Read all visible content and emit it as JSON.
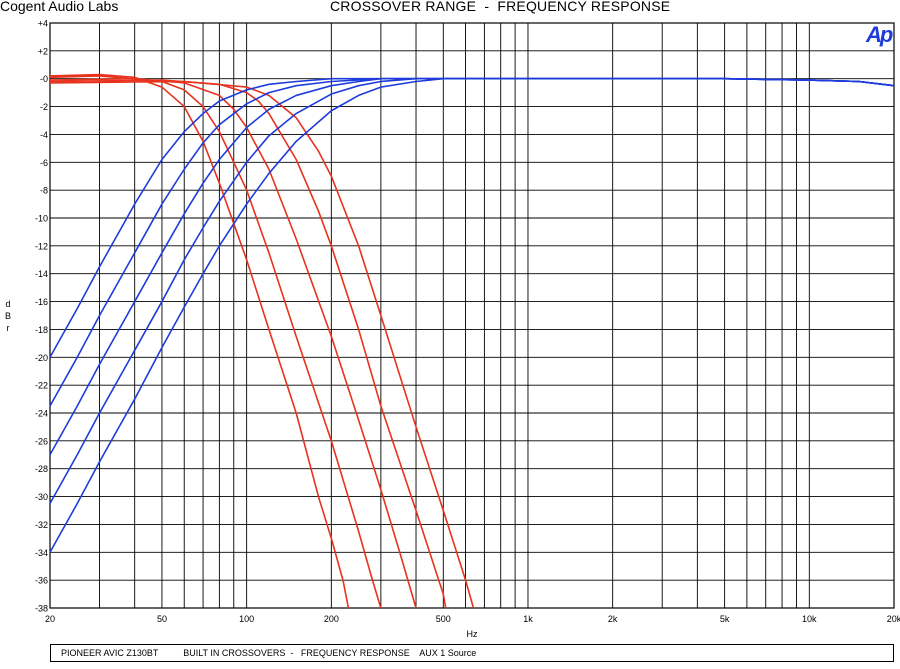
{
  "header": {
    "lab_name": "Cogent Audio Labs",
    "title": "CROSSOVER RANGE  -  FREQUENCY RESPONSE",
    "logo": "Ap"
  },
  "footer": {
    "device": "PIONEER AVIC Z130BT",
    "description": "BUILT IN CROSSOVERS  -   FREQUENCY RESPONSE    AUX 1 Source"
  },
  "chart_data": {
    "type": "line",
    "title": "CROSSOVER RANGE  -  FREQUENCY RESPONSE",
    "xlabel": "Hz",
    "ylabel": "dBr",
    "ylabel_chars": [
      "d",
      "B",
      "r"
    ],
    "x_scale": "log",
    "xlim": [
      20,
      20000
    ],
    "ylim": [
      -38,
      4
    ],
    "grid": true,
    "x_ticks": [
      20,
      50,
      100,
      200,
      500,
      1000,
      2000,
      5000,
      10000,
      20000
    ],
    "x_tick_labels": [
      "20",
      "50",
      "100",
      "200",
      "500",
      "1k",
      "2k",
      "5k",
      "10k",
      "20k"
    ],
    "y_ticks": [
      4,
      2,
      0,
      -2,
      -4,
      -6,
      -8,
      -10,
      -12,
      -14,
      -16,
      -18,
      -20,
      -22,
      -24,
      -26,
      -28,
      -30,
      -32,
      -34,
      -36,
      -38
    ],
    "y_tick_labels": [
      "+4",
      "+2",
      "-0",
      "-2",
      "-4",
      "-6",
      "-8",
      "-10",
      "-12",
      "-14",
      "-16",
      "-18",
      "-20",
      "-22",
      "-24",
      "-26",
      "-28",
      "-30",
      "-32",
      "-34",
      "-36",
      "-38"
    ],
    "colors": {
      "low_pass": "#e8321e",
      "high_pass": "#1e3cdc"
    },
    "series": [
      {
        "kind": "low_pass",
        "color": "#e8321e",
        "points": [
          [
            20,
            0.2
          ],
          [
            30,
            0.3
          ],
          [
            40,
            0.1
          ],
          [
            50,
            -0.6
          ],
          [
            60,
            -2.0
          ],
          [
            70,
            -4.5
          ],
          [
            80,
            -7.5
          ],
          [
            100,
            -13.0
          ],
          [
            120,
            -18.0
          ],
          [
            150,
            -24.0
          ],
          [
            180,
            -30.0
          ],
          [
            200,
            -33.0
          ],
          [
            220,
            -36.0
          ],
          [
            230,
            -38.0
          ]
        ]
      },
      {
        "kind": "low_pass",
        "color": "#e8321e",
        "points": [
          [
            20,
            0.1
          ],
          [
            30,
            0.2
          ],
          [
            50,
            -0.2
          ],
          [
            60,
            -0.8
          ],
          [
            70,
            -2.0
          ],
          [
            80,
            -3.8
          ],
          [
            90,
            -6.0
          ],
          [
            100,
            -8.0
          ],
          [
            120,
            -12.5
          ],
          [
            150,
            -18.5
          ],
          [
            200,
            -26.0
          ],
          [
            250,
            -32.5
          ],
          [
            280,
            -36.0
          ],
          [
            300,
            -38.0
          ]
        ]
      },
      {
        "kind": "low_pass",
        "color": "#e8321e",
        "points": [
          [
            20,
            -0.1
          ],
          [
            40,
            0.0
          ],
          [
            60,
            -0.3
          ],
          [
            80,
            -1.2
          ],
          [
            90,
            -2.2
          ],
          [
            100,
            -3.5
          ],
          [
            120,
            -6.5
          ],
          [
            150,
            -11.5
          ],
          [
            200,
            -18.5
          ],
          [
            250,
            -24.5
          ],
          [
            300,
            -29.5
          ],
          [
            350,
            -34.0
          ],
          [
            400,
            -38.0
          ]
        ]
      },
      {
        "kind": "low_pass",
        "color": "#e8321e",
        "points": [
          [
            20,
            -0.2
          ],
          [
            50,
            -0.1
          ],
          [
            80,
            -0.4
          ],
          [
            100,
            -1.0
          ],
          [
            110,
            -1.6
          ],
          [
            120,
            -2.5
          ],
          [
            150,
            -5.8
          ],
          [
            180,
            -9.5
          ],
          [
            200,
            -12.0
          ],
          [
            250,
            -18.0
          ],
          [
            300,
            -23.5
          ],
          [
            400,
            -31.0
          ],
          [
            500,
            -37.0
          ],
          [
            510,
            -38.0
          ]
        ]
      },
      {
        "kind": "low_pass",
        "color": "#e8321e",
        "points": [
          [
            20,
            -0.3
          ],
          [
            60,
            -0.2
          ],
          [
            100,
            -0.6
          ],
          [
            120,
            -1.2
          ],
          [
            150,
            -2.8
          ],
          [
            180,
            -5.2
          ],
          [
            200,
            -7.0
          ],
          [
            250,
            -12.0
          ],
          [
            300,
            -17.0
          ],
          [
            400,
            -25.0
          ],
          [
            500,
            -31.0
          ],
          [
            600,
            -36.0
          ],
          [
            640,
            -38.0
          ]
        ]
      },
      {
        "kind": "high_pass",
        "color": "#1e3cdc",
        "points": [
          [
            20,
            -20.0
          ],
          [
            25,
            -16.5
          ],
          [
            30,
            -13.5
          ],
          [
            40,
            -9.0
          ],
          [
            50,
            -5.8
          ],
          [
            60,
            -3.8
          ],
          [
            70,
            -2.5
          ],
          [
            80,
            -1.6
          ],
          [
            100,
            -0.8
          ],
          [
            120,
            -0.4
          ],
          [
            150,
            -0.2
          ],
          [
            200,
            0.0
          ],
          [
            300,
            0.0
          ],
          [
            1000,
            0.0
          ],
          [
            5000,
            0.0
          ],
          [
            10000,
            -0.1
          ],
          [
            15000,
            -0.2
          ],
          [
            20000,
            -0.5
          ]
        ]
      },
      {
        "kind": "high_pass",
        "color": "#1e3cdc",
        "points": [
          [
            20,
            -23.5
          ],
          [
            25,
            -20.0
          ],
          [
            30,
            -17.0
          ],
          [
            40,
            -12.5
          ],
          [
            50,
            -9.0
          ],
          [
            60,
            -6.5
          ],
          [
            70,
            -4.6
          ],
          [
            80,
            -3.3
          ],
          [
            100,
            -1.8
          ],
          [
            120,
            -1.0
          ],
          [
            150,
            -0.5
          ],
          [
            200,
            -0.2
          ],
          [
            300,
            0.0
          ],
          [
            1000,
            0.0
          ],
          [
            5000,
            0.0
          ],
          [
            10000,
            -0.1
          ],
          [
            15000,
            -0.2
          ],
          [
            20000,
            -0.5
          ]
        ]
      },
      {
        "kind": "high_pass",
        "color": "#1e3cdc",
        "points": [
          [
            20,
            -27.0
          ],
          [
            25,
            -23.5
          ],
          [
            30,
            -20.5
          ],
          [
            40,
            -16.0
          ],
          [
            50,
            -12.5
          ],
          [
            60,
            -9.7
          ],
          [
            70,
            -7.5
          ],
          [
            80,
            -5.8
          ],
          [
            100,
            -3.5
          ],
          [
            120,
            -2.2
          ],
          [
            150,
            -1.2
          ],
          [
            200,
            -0.5
          ],
          [
            250,
            -0.2
          ],
          [
            300,
            0.0
          ],
          [
            1000,
            0.0
          ],
          [
            5000,
            0.0
          ],
          [
            10000,
            -0.1
          ],
          [
            15000,
            -0.2
          ],
          [
            20000,
            -0.5
          ]
        ]
      },
      {
        "kind": "high_pass",
        "color": "#1e3cdc",
        "points": [
          [
            20,
            -30.5
          ],
          [
            25,
            -27.0
          ],
          [
            30,
            -24.0
          ],
          [
            40,
            -19.5
          ],
          [
            50,
            -16.0
          ],
          [
            60,
            -13.0
          ],
          [
            70,
            -10.7
          ],
          [
            80,
            -8.8
          ],
          [
            100,
            -6.0
          ],
          [
            120,
            -4.1
          ],
          [
            150,
            -2.5
          ],
          [
            200,
            -1.1
          ],
          [
            250,
            -0.5
          ],
          [
            300,
            -0.2
          ],
          [
            400,
            0.0
          ],
          [
            1000,
            0.0
          ],
          [
            5000,
            0.0
          ],
          [
            10000,
            -0.1
          ],
          [
            15000,
            -0.2
          ],
          [
            20000,
            -0.5
          ]
        ]
      },
      {
        "kind": "high_pass",
        "color": "#1e3cdc",
        "points": [
          [
            20,
            -34.0
          ],
          [
            25,
            -30.5
          ],
          [
            30,
            -27.5
          ],
          [
            40,
            -23.0
          ],
          [
            50,
            -19.3
          ],
          [
            60,
            -16.4
          ],
          [
            70,
            -14.0
          ],
          [
            80,
            -12.0
          ],
          [
            100,
            -9.0
          ],
          [
            120,
            -6.8
          ],
          [
            150,
            -4.5
          ],
          [
            200,
            -2.3
          ],
          [
            250,
            -1.2
          ],
          [
            300,
            -0.6
          ],
          [
            400,
            -0.2
          ],
          [
            500,
            0.0
          ],
          [
            1000,
            0.0
          ],
          [
            5000,
            0.0
          ],
          [
            10000,
            -0.1
          ],
          [
            15000,
            -0.2
          ],
          [
            20000,
            -0.5
          ]
        ]
      }
    ]
  }
}
